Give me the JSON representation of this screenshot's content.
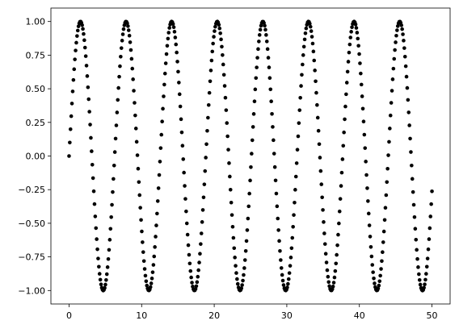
{
  "chart_data": {
    "type": "scatter",
    "title": "",
    "xlabel": "",
    "ylabel": "",
    "xlim": [
      -2.5,
      52.5
    ],
    "ylim": [
      -1.1,
      1.1
    ],
    "x_ticks": [
      0,
      10,
      20,
      30,
      40,
      50
    ],
    "x_tick_labels": [
      "0",
      "10",
      "20",
      "30",
      "40",
      "50"
    ],
    "y_ticks": [
      -1.0,
      -0.75,
      -0.5,
      -0.25,
      0.0,
      0.25,
      0.5,
      0.75,
      1.0
    ],
    "y_tick_labels": [
      "−1.00",
      "−0.75",
      "−0.50",
      "−0.25",
      "0.00",
      "0.25",
      "0.50",
      "0.75",
      "1.00"
    ],
    "grid": false,
    "legend": "none",
    "marker_color": "#000000",
    "series": [
      {
        "function": "sin(x)",
        "x_start": 0,
        "x_end": 50,
        "point_count": 500
      }
    ]
  }
}
